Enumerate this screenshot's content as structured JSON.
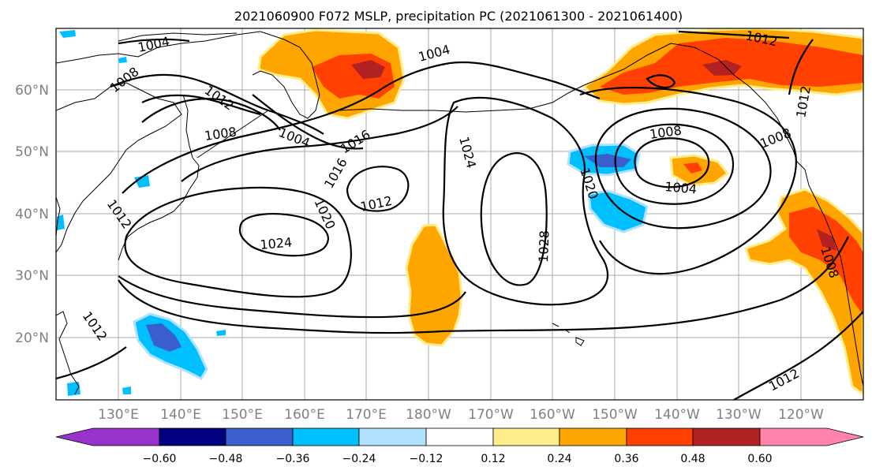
{
  "title": "2021060900 F072 MSLP, precipitation PC (2021061300 - 2021061400)",
  "lat_labels": [
    "20°N",
    "30°N",
    "40°N",
    "50°N",
    "60°N"
  ],
  "lon_labels": [
    "130°E",
    "140°E",
    "150°E",
    "160°E",
    "170°E",
    "180°W",
    "170°W",
    "160°W",
    "150°W",
    "140°W",
    "130°W",
    "120°W"
  ],
  "colorbar": {
    "colors": [
      "#9932cc",
      "#000080",
      "#3a5fcd",
      "#00bfff",
      "#b0e2ff",
      "#ffffff",
      "#ffec8b",
      "#ffa500",
      "#ff4000",
      "#b22222",
      "#ff83ab"
    ],
    "tick_labels": [
      "−0.60",
      "−0.48",
      "−0.36",
      "−0.24",
      "−0.12",
      "0.12",
      "0.24",
      "0.36",
      "0.48",
      "0.60"
    ]
  },
  "isobar_labels": [
    "1004",
    "1008",
    "1012",
    "1004",
    "1008",
    "1012",
    "1016",
    "1012",
    "1016",
    "1020",
    "1024",
    "1024",
    "1012",
    "1028",
    "1020",
    "1008",
    "1004",
    "1008",
    "1004",
    "1012",
    "1008",
    "1012",
    "1012"
  ]
}
